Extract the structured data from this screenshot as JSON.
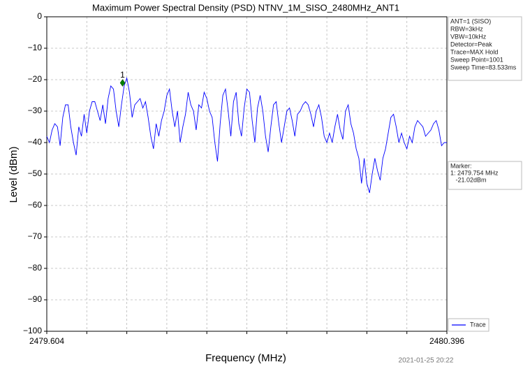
{
  "chart_data": {
    "type": "line",
    "title": "Maximum Power Spectral Density (PSD) NTNV_1M_SISO_2480MHz_ANT1",
    "xlabel": "Frequency (MHz)",
    "ylabel": "Level (dBm)",
    "timestamp": "2021-01-25 20:22",
    "xlim": [
      2479.604,
      2480.396
    ],
    "ylim": [
      -100,
      0
    ],
    "xticks": [
      2479.604,
      {
        "value": 2479.6832,
        "label": null
      },
      {
        "value": 2479.7624,
        "label": null
      },
      {
        "value": 2479.8416,
        "label": null
      },
      {
        "value": 2479.9208,
        "label": null
      },
      {
        "value": 2480.0,
        "label": null
      },
      {
        "value": 2480.0792,
        "label": null
      },
      {
        "value": 2480.1584,
        "label": null
      },
      {
        "value": 2480.2376,
        "label": null
      },
      {
        "value": 2480.3168,
        "label": null
      },
      2480.396
    ],
    "yticks": [
      0,
      {
        "value": -10,
        "label": "−10"
      },
      {
        "value": -20,
        "label": "−20"
      },
      {
        "value": -30,
        "label": "−30"
      },
      {
        "value": -40,
        "label": "−40"
      },
      {
        "value": -50,
        "label": "−50"
      },
      {
        "value": -60,
        "label": "−60"
      },
      {
        "value": -70,
        "label": "−70"
      },
      {
        "value": -80,
        "label": "−80"
      },
      {
        "value": -90,
        "label": "−90"
      },
      {
        "value": -100,
        "label": "−100"
      }
    ],
    "grid": true,
    "info": [
      "ANT=1 (SISO)",
      "RBW=3kHz",
      "VBW=10kHz",
      "Detector=Peak",
      "Trace=MAX Hold",
      "Sweep Point=1001",
      "Sweep Time=83.533ms"
    ],
    "marker": {
      "label": "1",
      "x": 2479.754,
      "y": -21.02,
      "color": "#008000",
      "text": [
        "Marker:",
        "1: 2479.754 MHz",
        "   -21.02dBm"
      ]
    },
    "x": [
      2479.604,
      2479.60928,
      2479.61456,
      2479.61984,
      2479.62512,
      2479.6304,
      2479.63568,
      2479.64096,
      2479.64624,
      2479.65152,
      2479.6568,
      2479.66208,
      2479.66736,
      2479.67264,
      2479.67792,
      2479.6832,
      2479.68848,
      2479.69376,
      2479.69904,
      2479.70432,
      2479.7096,
      2479.71488,
      2479.72016,
      2479.72544,
      2479.73072,
      2479.736,
      2479.74128,
      2479.74656,
      2479.75184,
      2479.75712,
      2479.7624,
      2479.76768,
      2479.77296,
      2479.77824,
      2479.78352,
      2479.7888,
      2479.79408,
      2479.79936,
      2479.80464,
      2479.80992,
      2479.8152,
      2479.82048,
      2479.82576,
      2479.83104,
      2479.83632,
      2479.8416,
      2479.84688,
      2479.85216,
      2479.85744,
      2479.86272,
      2479.868,
      2479.87328,
      2479.87856,
      2479.88384,
      2479.88912,
      2479.8944,
      2479.89968,
      2479.90496,
      2479.91024,
      2479.91552,
      2479.9208,
      2479.92608,
      2479.93136,
      2479.93664,
      2479.94192,
      2479.9472,
      2479.95248,
      2479.95776,
      2479.96304,
      2479.96832,
      2479.9736,
      2479.97888,
      2479.98416,
      2479.98944,
      2479.99472,
      2480.0,
      2480.00528,
      2480.01056,
      2480.01584,
      2480.02112,
      2480.0264,
      2480.03168,
      2480.03696,
      2480.04224,
      2480.04752,
      2480.0528,
      2480.05808,
      2480.06336,
      2480.06864,
      2480.07392,
      2480.0792,
      2480.08448,
      2480.08976,
      2480.09504,
      2480.10032,
      2480.1056,
      2480.11088,
      2480.11616,
      2480.12144,
      2480.12672,
      2480.132,
      2480.13728,
      2480.14256,
      2480.14784,
      2480.15312,
      2480.1584,
      2480.16368,
      2480.16896,
      2480.17424,
      2480.17952,
      2480.1848,
      2480.19008,
      2480.19536,
      2480.20064,
      2480.20592,
      2480.2112,
      2480.21648,
      2480.22176,
      2480.22704,
      2480.23232,
      2480.2376,
      2480.24288,
      2480.24816,
      2480.25344,
      2480.25872,
      2480.264,
      2480.26928,
      2480.27456,
      2480.27984,
      2480.28512,
      2480.2904,
      2480.29568,
      2480.30096,
      2480.30624,
      2480.31152,
      2480.3168,
      2480.32208,
      2480.32736,
      2480.33264,
      2480.33792,
      2480.3432,
      2480.34848,
      2480.35376,
      2480.35904,
      2480.36432,
      2480.3696,
      2480.37488,
      2480.38016,
      2480.38544,
      2480.39072,
      2480.396
    ],
    "series": [
      {
        "name": "Trace",
        "color": "#0000ff",
        "values": [
          -38,
          -40,
          -36,
          -34,
          -35,
          -41,
          -32,
          -28,
          -28,
          -35,
          -40,
          -44,
          -35,
          -38,
          -31,
          -37,
          -30,
          -27,
          -27,
          -30,
          -33,
          -28,
          -34,
          -26,
          -22,
          -23,
          -30,
          -35,
          -28,
          -22,
          -19.5,
          -24,
          -32,
          -28,
          -27,
          -26,
          -29,
          -27,
          -32,
          -38,
          -42,
          -34,
          -38,
          -33,
          -30,
          -25,
          -23,
          -30,
          -35,
          -30,
          -40,
          -35,
          -31,
          -24,
          -28,
          -30,
          -36,
          -28,
          -29,
          -24,
          -26,
          -30,
          -32,
          -40,
          -46,
          -34,
          -25,
          -23,
          -30,
          -38,
          -27,
          -24,
          -34,
          -38,
          -29,
          -23,
          -24,
          -33,
          -40,
          -29,
          -25,
          -30,
          -38,
          -43,
          -35,
          -28,
          -27,
          -34,
          -40,
          -35,
          -30,
          -29,
          -33,
          -38,
          -31,
          -30,
          -28,
          -27,
          -28,
          -31,
          -35,
          -30,
          -28,
          -32,
          -38,
          -40,
          -37,
          -40,
          -35,
          -31,
          -36,
          -39,
          -30,
          -28,
          -34,
          -37,
          -42,
          -45,
          -53,
          -45,
          -53,
          -56,
          -50,
          -45,
          -49,
          -52,
          -45,
          -42,
          -37,
          -32,
          -31,
          -35,
          -40,
          -37,
          -40,
          -42,
          -38,
          -40,
          -35,
          -33,
          -34,
          -35,
          -38,
          -37,
          -36,
          -34,
          -33,
          -36,
          -41,
          -40,
          -40
        ]
      }
    ]
  }
}
